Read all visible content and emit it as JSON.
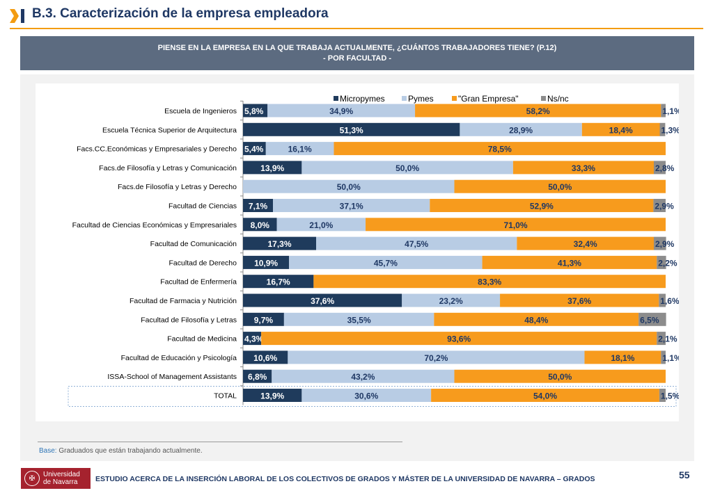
{
  "header": {
    "title": "B.3. Caracterización de la empresa empleadora"
  },
  "question": {
    "line1": "PIENSE EN LA EMPRESA EN LA QUE TRABAJA ACTUALMENTE, ¿CUÁNTOS TRABAJADORES TIENE? (P.12)",
    "line2": "- POR FACULTAD -"
  },
  "base": {
    "label": "Base:",
    "text": " Graduados que están trabajando actualmente."
  },
  "footer": {
    "logo_line1": "Universidad",
    "logo_line2": "de Navarra",
    "text": "ESTUDIO ACERCA DE LA INSERCIÓN LABORAL DE LOS COLECTIVOS DE GRADOS Y MÁSTER DE LA UNIVERSIDAD DE NAVARRA – GRADOS",
    "page": "55"
  },
  "chart_data": {
    "type": "bar",
    "orientation": "horizontal",
    "stacked": "percent",
    "legend_position": "top",
    "categories": [
      "Escuela de Ingenieros",
      "Escuela Técnica Superior de Arquitectura",
      "Facs.CC.Económicas y Empresariales y Derecho",
      "Facs.de Filosofía y Letras y Comunicación",
      "Facs.de Filosofía y Letras y Derecho",
      "Facultad de Ciencias",
      "Facultad de Ciencias Económicas y Empresariales",
      "Facultad de Comunicación",
      "Facultad de Derecho",
      "Facultad de Enfermería",
      "Facultad de Farmacia y Nutrición",
      "Facultad de Filosofía y Letras",
      "Facultad de Medicina",
      "Facultad de Educación y Psicología",
      "ISSA-School of Management Assistants",
      "TOTAL"
    ],
    "series": [
      {
        "name": "Micropymes",
        "color": "#1f3b5c",
        "values": [
          5.8,
          51.3,
          5.4,
          13.9,
          0,
          7.1,
          8.0,
          17.3,
          10.9,
          16.7,
          37.6,
          9.7,
          4.3,
          10.6,
          6.8,
          13.9
        ],
        "labels": [
          "5,8%",
          "51,3%",
          "5,4%",
          "13,9%",
          "",
          "7,1%",
          "8,0%",
          "17,3%",
          "10,9%",
          "16,7%",
          "37,6%",
          "9,7%",
          "4,3%",
          "10,6%",
          "6,8%",
          "13,9%"
        ]
      },
      {
        "name": "Pymes",
        "color": "#b8cce4",
        "values": [
          34.9,
          28.9,
          16.1,
          50.0,
          50.0,
          37.1,
          21.0,
          47.5,
          45.7,
          0,
          23.2,
          35.5,
          0,
          70.2,
          43.2,
          30.6
        ],
        "labels": [
          "34,9%",
          "28,9%",
          "16,1%",
          "50,0%",
          "50,0%",
          "37,1%",
          "21,0%",
          "47,5%",
          "45,7%",
          "",
          "23,2%",
          "35,5%",
          "",
          "70,2%",
          "43,2%",
          "30,6%"
        ]
      },
      {
        "name": "\"Gran Empresa\"",
        "color": "#f79b1d",
        "values": [
          58.2,
          18.4,
          78.5,
          33.3,
          50.0,
          52.9,
          71.0,
          32.4,
          41.3,
          83.3,
          37.6,
          48.4,
          93.6,
          18.1,
          50.0,
          54.0
        ],
        "labels": [
          "58,2%",
          "18,4%",
          "78,5%",
          "33,3%",
          "50,0%",
          "52,9%",
          "71,0%",
          "32,4%",
          "41,3%",
          "83,3%",
          "37,6%",
          "48,4%",
          "93,6%",
          "18,1%",
          "50,0%",
          "54,0%"
        ]
      },
      {
        "name": "Ns/nc",
        "color": "#8c8c8c",
        "values": [
          1.1,
          1.3,
          0,
          2.8,
          0,
          2.9,
          0,
          2.9,
          2.2,
          0,
          1.6,
          6.5,
          2.1,
          1.1,
          0,
          1.5
        ],
        "labels": [
          "1,1%",
          "1,3%",
          "",
          "2,8%",
          "",
          "2,9%",
          "",
          "2,9%",
          "2,2%",
          "",
          "1,6%",
          "6,5%",
          "2,1%",
          "1,1%",
          "",
          "1,5%"
        ]
      }
    ]
  }
}
